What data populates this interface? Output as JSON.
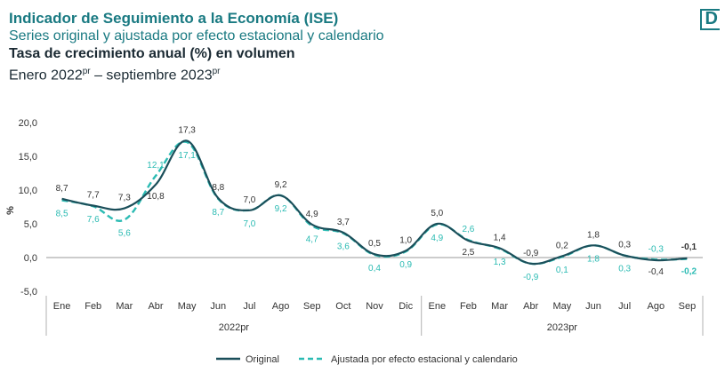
{
  "header": {
    "title": "Indicador de Seguimiento a la Economía (ISE)",
    "subtitle": "Series original y ajustada por efecto estacional y calendario",
    "measure": "Tasa de crecimiento anual (%) en volumen",
    "period_start": "Enero 2022",
    "period_mid": " – septiembre 2023",
    "pr_suffix": "pr",
    "logo_letter": "D"
  },
  "colors": {
    "original": "#1b4f5a",
    "adjusted": "#2bbbb3",
    "axis_text": "#333333",
    "accent": "#1a7a82"
  },
  "chart_data": {
    "type": "line",
    "ylabel": "%",
    "ylim": [
      -5,
      20
    ],
    "yticks": [
      "-5,0",
      "0,0",
      "5,0",
      "10,0",
      "15,0",
      "20,0"
    ],
    "ytick_values": [
      -5,
      0,
      5,
      10,
      15,
      20
    ],
    "categories": [
      "Ene",
      "Feb",
      "Mar",
      "Abr",
      "May",
      "Jun",
      "Jul",
      "Ago",
      "Sep",
      "Oct",
      "Nov",
      "Dic",
      "Ene",
      "Feb",
      "Mar",
      "Abr",
      "May",
      "Jun",
      "Jul",
      "Ago",
      "Sep"
    ],
    "year_groups": [
      {
        "label": "2022pr",
        "count": 12
      },
      {
        "label": "2023pr",
        "count": 9
      }
    ],
    "grid": false,
    "legend_position": "bottom",
    "series": [
      {
        "name": "Original",
        "style": "solid",
        "values": [
          8.7,
          7.7,
          7.3,
          10.8,
          17.3,
          8.8,
          7.0,
          9.2,
          4.9,
          3.7,
          0.5,
          1.0,
          5.0,
          2.5,
          1.4,
          -0.9,
          0.2,
          1.8,
          0.3,
          -0.4,
          -0.1
        ],
        "labels": [
          "8,7",
          "7,7",
          "7,3",
          "10,8",
          "17,3",
          "8,8",
          "7,0",
          "9,2",
          "4,9",
          "3,7",
          "0,5",
          "1,0",
          "5,0",
          "2,5",
          "1,4",
          "-0,9",
          "0,2",
          "1,8",
          "0,3",
          "-0,4",
          "-0,1"
        ]
      },
      {
        "name": "Ajustada por efecto estacional y calendario",
        "style": "dashed",
        "values": [
          8.5,
          7.6,
          5.6,
          12.1,
          17.1,
          8.7,
          7.0,
          9.2,
          4.7,
          3.6,
          0.4,
          0.9,
          4.9,
          2.6,
          1.3,
          -0.9,
          0.1,
          1.8,
          0.3,
          -0.3,
          -0.2
        ],
        "labels": [
          "8,5",
          "7,6",
          "5,6",
          "12,1",
          "17,1",
          "8,7",
          "7,0",
          "9,2",
          "4,7",
          "3,6",
          "0,4",
          "0,9",
          "4,9",
          "2,6",
          "1,3",
          "-0,9",
          "0,1",
          "1,8",
          "0,3",
          "-0,3",
          "-0,2"
        ]
      }
    ]
  }
}
